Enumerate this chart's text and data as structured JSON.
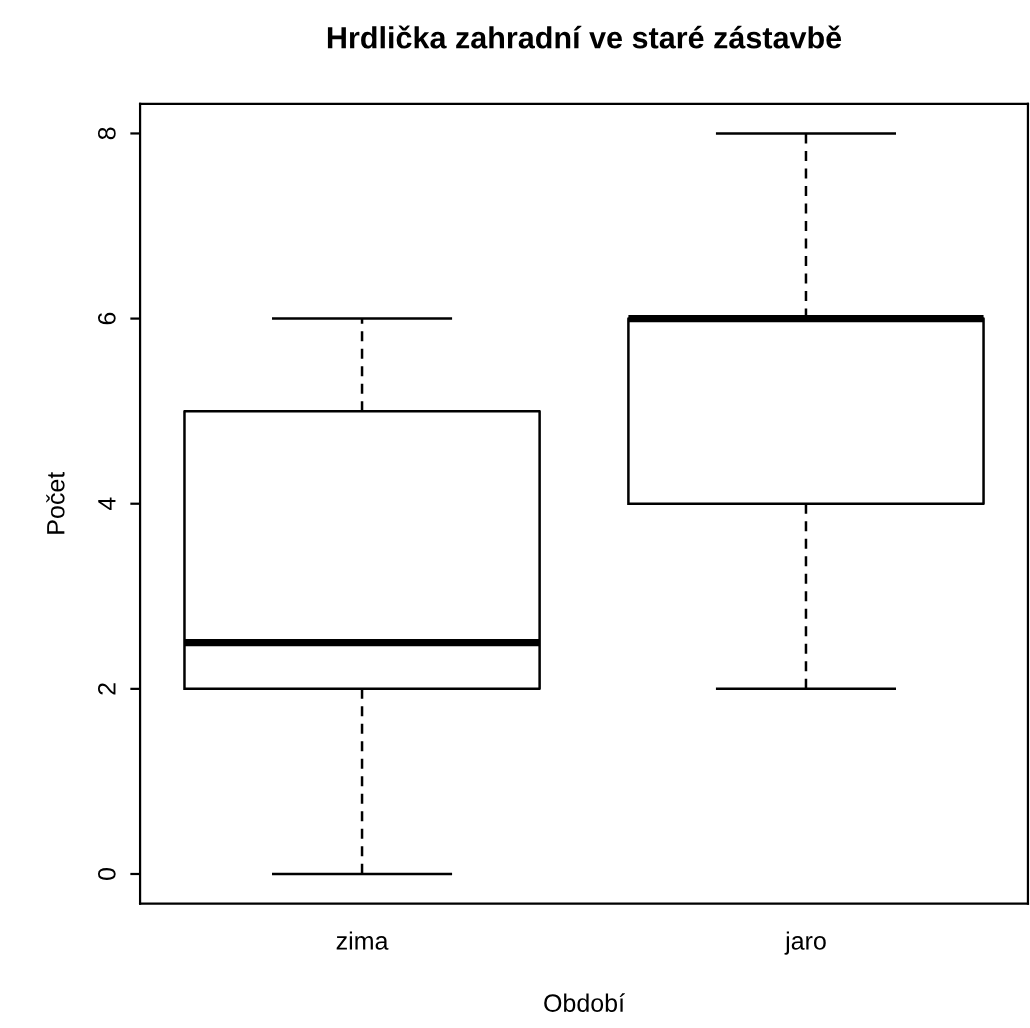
{
  "chart_data": {
    "type": "box",
    "title": "Hrdlička zahradní ve staré zástavbě",
    "xlabel": "Období",
    "ylabel": "Počet",
    "categories": [
      "zima",
      "jaro"
    ],
    "boxes": [
      {
        "low": 0,
        "q1": 2,
        "median": 2.5,
        "q3": 5,
        "high": 6
      },
      {
        "low": 2,
        "q1": 4,
        "median": 6,
        "q3": 6,
        "high": 8
      }
    ],
    "ylim": [
      -0.32,
      8.32
    ],
    "yticks": [
      0,
      2,
      4,
      6,
      8
    ],
    "grid": false,
    "legend": false
  }
}
